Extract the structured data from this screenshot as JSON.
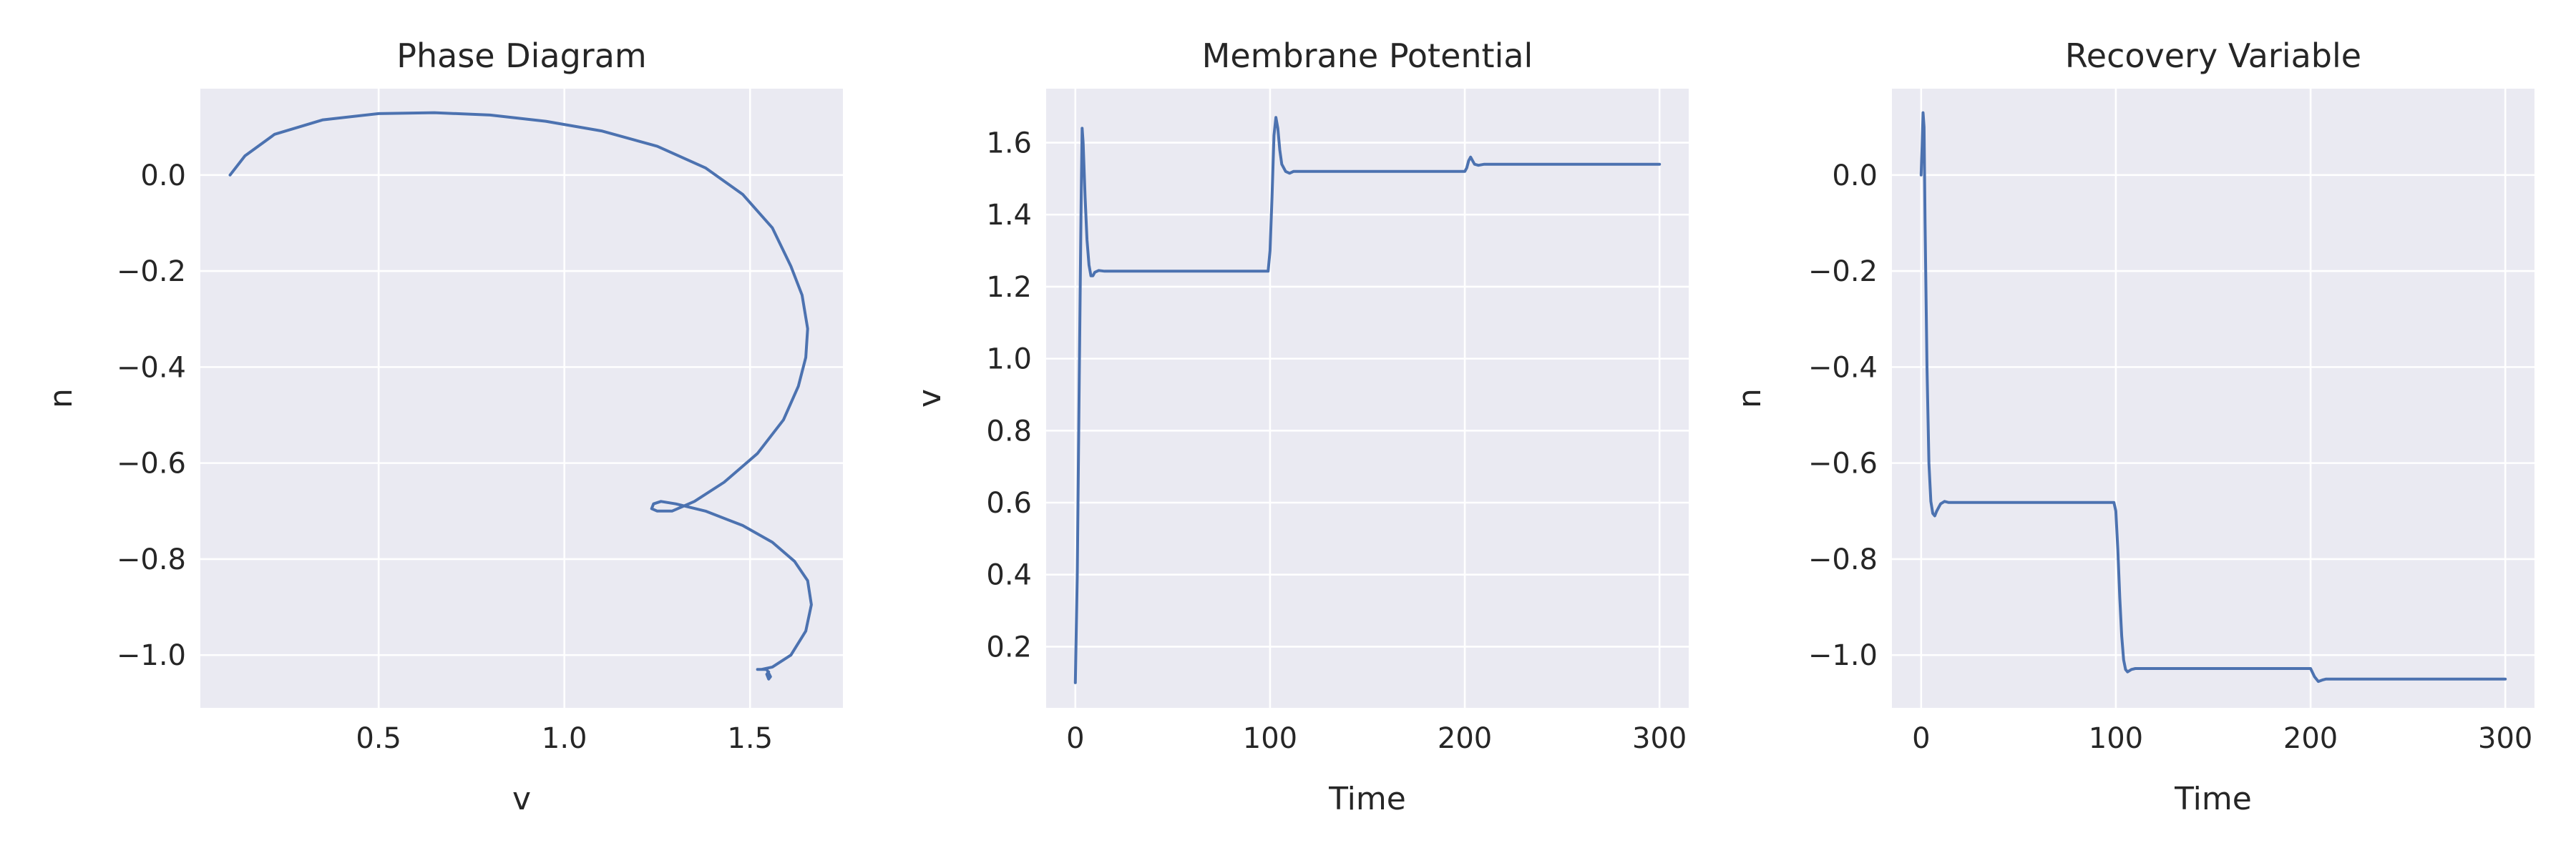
{
  "chart_data": [
    {
      "type": "line",
      "title": "Phase Diagram",
      "xlabel": "v",
      "ylabel": "n",
      "xlim": [
        0.02,
        1.75
      ],
      "ylim": [
        -1.11,
        0.18
      ],
      "xticks": [
        0.5,
        1.0,
        1.5
      ],
      "xtick_labels": [
        "0.5",
        "1.0",
        "1.5"
      ],
      "yticks": [
        0.0,
        -0.2,
        -0.4,
        -0.6,
        -0.8,
        -1.0
      ],
      "ytick_labels": [
        "0.0",
        "−0.2",
        "−0.4",
        "−0.6",
        "−0.8",
        "−1.0"
      ],
      "grid": true,
      "series": [
        {
          "color": "#4c72b0",
          "x": [
            0.1,
            0.14,
            0.22,
            0.35,
            0.5,
            0.65,
            0.8,
            0.95,
            1.1,
            1.25,
            1.38,
            1.48,
            1.56,
            1.61,
            1.64,
            1.655,
            1.65,
            1.63,
            1.59,
            1.52,
            1.43,
            1.35,
            1.29,
            1.25,
            1.235,
            1.24,
            1.26,
            1.3,
            1.38,
            1.48,
            1.56,
            1.62,
            1.655,
            1.665,
            1.65,
            1.61,
            1.56,
            1.53,
            1.52,
            1.545,
            1.555,
            1.55,
            1.545,
            1.55
          ],
          "y": [
            0.0,
            0.04,
            0.085,
            0.115,
            0.128,
            0.13,
            0.125,
            0.112,
            0.092,
            0.06,
            0.015,
            -0.04,
            -0.11,
            -0.19,
            -0.25,
            -0.32,
            -0.38,
            -0.44,
            -0.51,
            -0.58,
            -0.64,
            -0.68,
            -0.7,
            -0.7,
            -0.695,
            -0.685,
            -0.68,
            -0.685,
            -0.7,
            -0.73,
            -0.765,
            -0.805,
            -0.845,
            -0.895,
            -0.95,
            -1.0,
            -1.025,
            -1.03,
            -1.03,
            -1.03,
            -1.045,
            -1.05,
            -1.04,
            -1.035
          ]
        }
      ]
    },
    {
      "type": "line",
      "title": "Membrane Potential",
      "xlabel": "Time",
      "ylabel": "v",
      "xlim": [
        -15,
        315
      ],
      "ylim": [
        0.03,
        1.75
      ],
      "xticks": [
        0,
        100,
        200,
        300
      ],
      "xtick_labels": [
        "0",
        "100",
        "200",
        "300"
      ],
      "yticks": [
        0.2,
        0.4,
        0.6,
        0.8,
        1.0,
        1.2,
        1.4,
        1.6
      ],
      "ytick_labels": [
        "0.2",
        "0.4",
        "0.6",
        "0.8",
        "1.0",
        "1.2",
        "1.4",
        "1.6"
      ],
      "grid": true,
      "series": [
        {
          "color": "#4c72b0",
          "x": [
            0,
            1,
            2,
            3,
            3.5,
            4,
            5,
            6,
            7,
            8,
            9,
            10,
            12,
            15,
            20,
            50,
            99,
            100,
            101,
            102,
            103,
            104,
            105,
            106,
            108,
            110,
            112,
            115,
            150,
            199,
            200,
            201,
            202,
            203,
            204,
            205,
            207,
            210,
            250,
            300
          ],
          "y": [
            0.1,
            0.4,
            0.95,
            1.45,
            1.64,
            1.6,
            1.45,
            1.33,
            1.26,
            1.23,
            1.23,
            1.24,
            1.245,
            1.243,
            1.243,
            1.243,
            1.243,
            1.3,
            1.45,
            1.62,
            1.67,
            1.64,
            1.58,
            1.54,
            1.52,
            1.515,
            1.52,
            1.52,
            1.52,
            1.52,
            1.52,
            1.53,
            1.55,
            1.56,
            1.55,
            1.54,
            1.537,
            1.54,
            1.54,
            1.54
          ]
        }
      ]
    },
    {
      "type": "line",
      "title": "Recovery Variable",
      "xlabel": "Time",
      "ylabel": "n",
      "xlim": [
        -15,
        315
      ],
      "ylim": [
        -1.11,
        0.18
      ],
      "xticks": [
        0,
        100,
        200,
        300
      ],
      "xtick_labels": [
        "0",
        "100",
        "200",
        "300"
      ],
      "yticks": [
        0.0,
        -0.2,
        -0.4,
        -0.6,
        -0.8,
        -1.0
      ],
      "ytick_labels": [
        "0.0",
        "−0.2",
        "−0.4",
        "−0.6",
        "−0.8",
        "−1.0"
      ],
      "grid": true,
      "series": [
        {
          "color": "#4c72b0",
          "x": [
            0,
            0.5,
            1,
            1.5,
            2,
            3,
            4,
            5,
            6,
            7,
            8,
            10,
            12,
            14,
            20,
            50,
            99,
            100,
            101,
            102,
            103,
            104,
            105,
            106,
            108,
            110,
            115,
            150,
            199,
            200,
            202,
            204,
            206,
            208,
            212,
            250,
            300
          ],
          "y": [
            0.0,
            0.06,
            0.13,
            0.1,
            -0.1,
            -0.4,
            -0.6,
            -0.68,
            -0.705,
            -0.71,
            -0.7,
            -0.685,
            -0.68,
            -0.682,
            -0.682,
            -0.682,
            -0.682,
            -0.7,
            -0.78,
            -0.88,
            -0.96,
            -1.01,
            -1.03,
            -1.035,
            -1.03,
            -1.028,
            -1.028,
            -1.028,
            -1.028,
            -1.028,
            -1.045,
            -1.055,
            -1.052,
            -1.05,
            -1.05,
            -1.05,
            -1.05
          ]
        }
      ]
    }
  ]
}
